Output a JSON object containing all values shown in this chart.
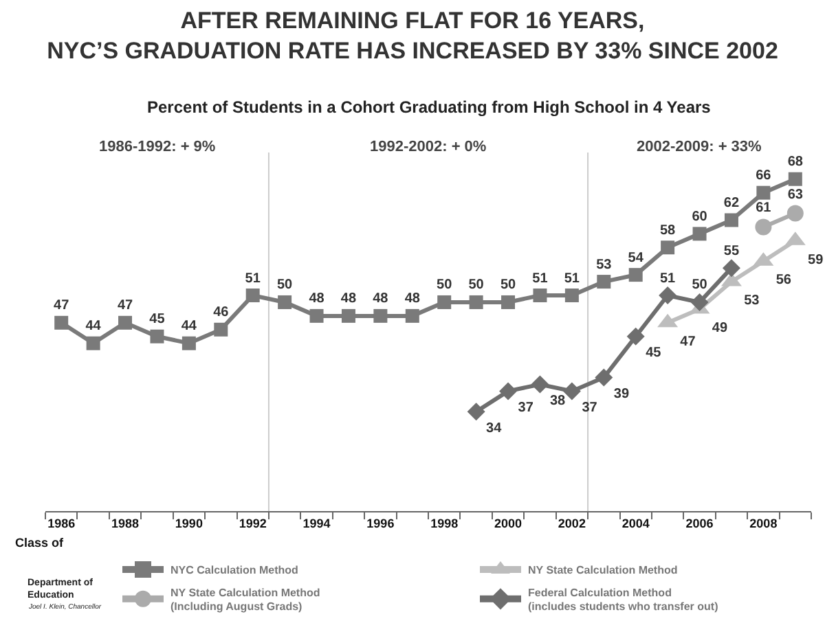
{
  "chart_data": {
    "type": "line",
    "title": "AFTER REMAINING FLAT FOR 16 YEARS,\nNYC’S GRADUATION RATE HAS INCREASED BY 33% SINCE 2002",
    "subtitle": "Percent of Students in a Cohort Graduating from High School in 4 Years",
    "xlabel": "Class of",
    "series": [
      {
        "name": "NYC Calculation Method",
        "color": "#7a7a7a",
        "marker": "square",
        "x": [
          1986,
          1987,
          1988,
          1989,
          1990,
          1991,
          1992,
          1993,
          1994,
          1995,
          1996,
          1997,
          1998,
          1999,
          2000,
          2001,
          2002,
          2003,
          2004,
          2005,
          2006,
          2007,
          2008,
          2009
        ],
        "values": [
          47,
          44,
          47,
          45,
          44,
          46,
          51,
          50,
          48,
          48,
          48,
          48,
          50,
          50,
          50,
          51,
          51,
          53,
          54,
          58,
          60,
          62,
          66,
          68
        ]
      },
      {
        "name": "NY State Calculation Method",
        "color": "#bdbdbd",
        "marker": "triangle",
        "x": [
          2005,
          2006,
          2007,
          2008,
          2009
        ],
        "values": [
          47,
          49,
          53,
          56,
          59
        ]
      },
      {
        "name": "NY State Calculation Method\n(Including August Grads)",
        "color": "#ababab",
        "marker": "circle",
        "x": [
          2008,
          2009
        ],
        "values": [
          61,
          63
        ]
      },
      {
        "name": "Federal Calculation Method\n(includes students who transfer out)",
        "color": "#6e6e6e",
        "marker": "diamond",
        "x": [
          1999,
          2000,
          2001,
          2002,
          2003,
          2004,
          2005,
          2006,
          2007
        ],
        "values": [
          34,
          37,
          38,
          37,
          39,
          45,
          51,
          50,
          55
        ]
      }
    ],
    "xlim": [
      1985.5,
      2009.5
    ],
    "xticks": [
      1986,
      1988,
      1990,
      1992,
      1994,
      1996,
      1998,
      2000,
      2002,
      2004,
      2006,
      2008
    ],
    "tick_labels": "x",
    "data_labels": true,
    "legend": "bottom",
    "ref_lines": [
      {
        "axis": "x",
        "value": 1992.5,
        "color": "#cccccc"
      },
      {
        "axis": "x",
        "value": 2002.5,
        "color": "#cccccc"
      }
    ],
    "annotations": [
      "1986-1992: + 9%",
      "1992-2002: + 0%",
      "2002-2009: + 33%",
      "Department of\nEducation",
      "Joel I. Klein, Chancellor"
    ]
  }
}
